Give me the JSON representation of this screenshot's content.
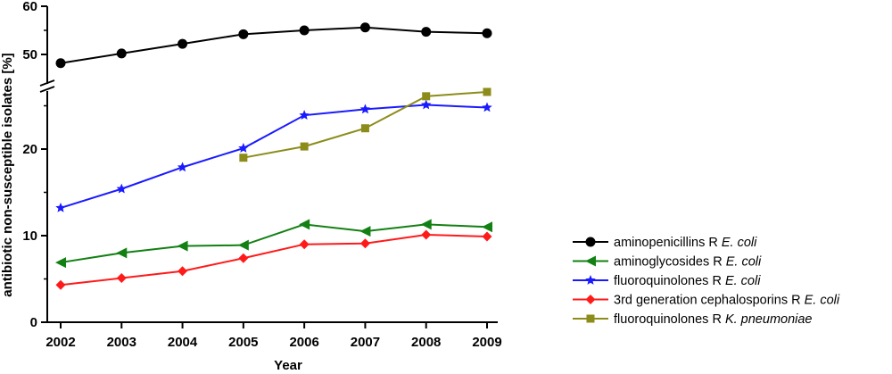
{
  "chart_data": {
    "type": "line",
    "xlabel": "Year",
    "ylabel": "antibiotic non-susceptible isolates [%]",
    "x": [
      "2002",
      "2003",
      "2004",
      "2005",
      "2006",
      "2007",
      "2008",
      "2009"
    ],
    "y_axis_break": true,
    "y_lower_ticks": [
      "0",
      "10",
      "20"
    ],
    "y_upper_ticks": [
      "50",
      "60"
    ],
    "ylim_lower": [
      0,
      26.3
    ],
    "ylim_upper": [
      46,
      60
    ],
    "grid": false,
    "legend_position": "right",
    "series": [
      {
        "name_prefix": "aminopenicillins R ",
        "name_italic": "E. coli",
        "color": "#000000",
        "marker": "circle",
        "axis": "upper",
        "values": [
          48.2,
          50.2,
          52.2,
          54.2,
          55.0,
          55.6,
          54.7,
          54.4
        ]
      },
      {
        "name_prefix": "aminoglycosides R ",
        "name_italic": "E. coli",
        "color": "#138013",
        "marker": "triangle-left",
        "axis": "lower",
        "values": [
          6.9,
          8.0,
          8.8,
          8.9,
          11.3,
          10.5,
          11.3,
          11.0
        ]
      },
      {
        "name_prefix": "fluoroquinolones R ",
        "name_italic": "E. coli",
        "color": "#1a1aff",
        "marker": "star",
        "axis": "lower",
        "values": [
          13.2,
          15.4,
          17.9,
          20.1,
          23.9,
          24.6,
          25.1,
          24.8
        ]
      },
      {
        "name_prefix": "3rd generation cephalosporins R ",
        "name_italic": "E. coli",
        "color": "#ff1a1a",
        "marker": "diamond",
        "axis": "lower",
        "values": [
          4.3,
          5.1,
          5.9,
          7.4,
          9.0,
          9.1,
          10.1,
          9.9
        ]
      },
      {
        "name_prefix": "fluoroquinolones R ",
        "name_italic": "K. pneumoniae",
        "color": "#8c8c1a",
        "marker": "square",
        "axis": "lower",
        "values": [
          null,
          null,
          null,
          19.0,
          20.3,
          22.4,
          26.1,
          26.6
        ]
      }
    ]
  }
}
